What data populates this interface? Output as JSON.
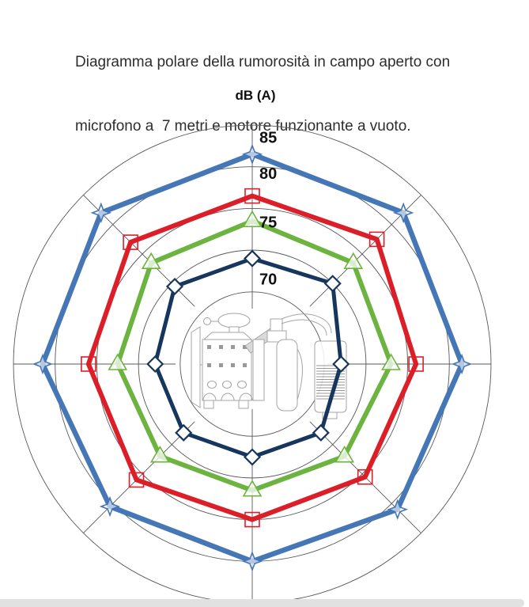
{
  "header": {
    "lines": [
      "Diagramma polare della rumorosità in campo aperto con",
      "microfono a  7 metri e motore funzionante a vuoto."
    ]
  },
  "chart_data": {
    "type": "radar",
    "title": "dB (A)",
    "axis_ticks": [
      85,
      80,
      75,
      70
    ],
    "rings_db": [
      65,
      70,
      75,
      80,
      85
    ],
    "angles_deg": [
      0,
      45,
      90,
      135,
      180,
      225,
      270,
      315
    ],
    "rlim": [
      56.5,
      85
    ],
    "grid": true,
    "legend": "none",
    "grid_color": "#57585a",
    "tick_color": "#111111",
    "series": [
      {
        "name": "outer-blue",
        "color": "#4576b5",
        "marker": "star",
        "values": [
          81.5,
          82,
          81.5,
          81,
          80,
          80.5,
          81.5,
          82
        ]
      },
      {
        "name": "red",
        "color": "#dc1e28",
        "marker": "square",
        "values": [
          76.5,
          77.5,
          76,
          75.5,
          75,
          76,
          76,
          77
        ]
      },
      {
        "name": "green",
        "color": "#6cb33f",
        "marker": "triangle",
        "values": [
          73.5,
          73.5,
          73,
          72,
          71.5,
          72,
          72.5,
          73.5
        ]
      },
      {
        "name": "navy",
        "color": "#17365d",
        "marker": "diamond",
        "values": [
          69,
          70,
          67,
          68,
          67.5,
          68,
          68,
          69.5
        ]
      }
    ]
  },
  "footer": {
    "band_color": "#e1e1e1"
  }
}
